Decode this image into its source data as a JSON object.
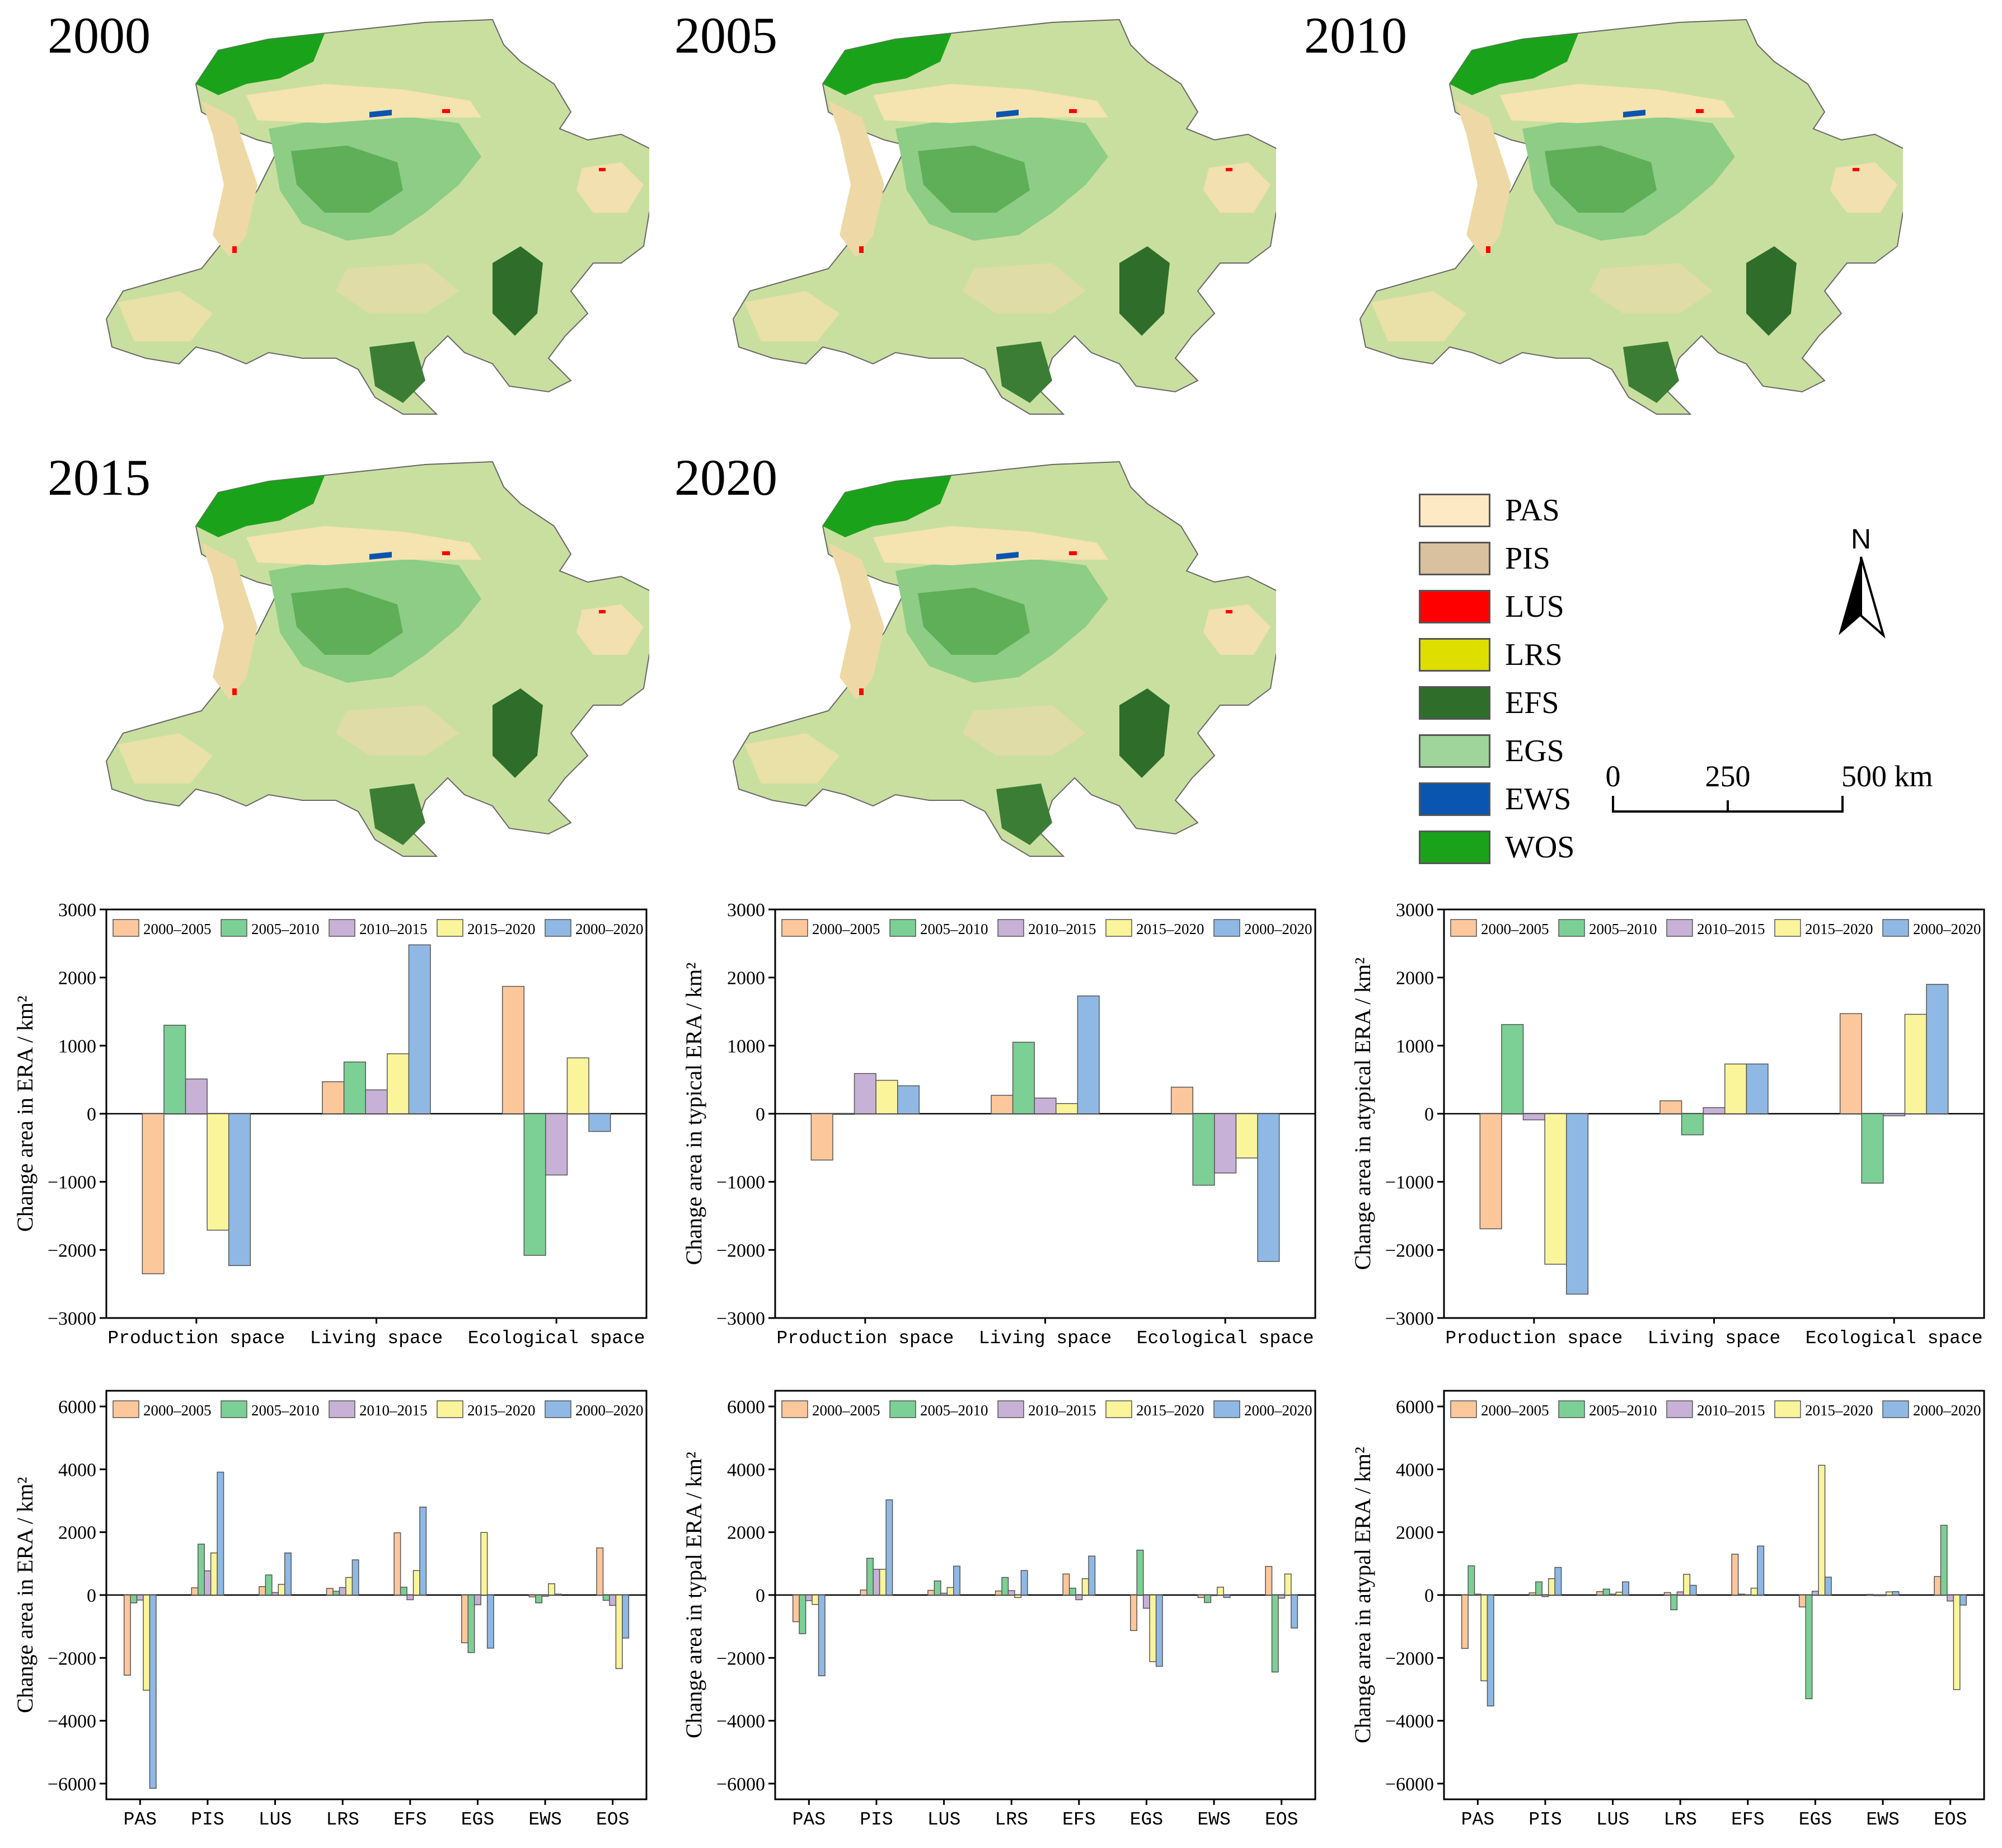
{
  "maps": {
    "years": [
      "2000",
      "2005",
      "2010",
      "2015",
      "2020"
    ]
  },
  "legend": {
    "items": [
      {
        "label": "PAS",
        "color": "#fde9c4"
      },
      {
        "label": "PIS",
        "color": "#d9c09e"
      },
      {
        "label": "LUS",
        "color": "#ff0000"
      },
      {
        "label": "LRS",
        "color": "#dede00"
      },
      {
        "label": "EFS",
        "color": "#2e6e2a"
      },
      {
        "label": "EGS",
        "color": "#9fd49a"
      },
      {
        "label": "EWS",
        "color": "#0a55b0"
      },
      {
        "label": "WOS",
        "color": "#1aa31a"
      }
    ]
  },
  "north_arrow": {
    "label": "N"
  },
  "scale_bar": {
    "ticks": [
      "0",
      "250",
      "500 km"
    ]
  },
  "colors": {
    "p1": "#fdc79c",
    "p2": "#7ccf95",
    "p3": "#c7b1d6",
    "p4": "#faf49a",
    "p5": "#8fb8e4"
  },
  "chart_data": [
    {
      "type": "bar",
      "ylabel": "Change area in ERA / km²",
      "ylim": [
        -3000,
        3000
      ],
      "yticks": [
        -3000,
        -2000,
        -1000,
        0,
        1000,
        2000,
        3000
      ],
      "categories": [
        "Production space",
        "Living space",
        "Ecological space"
      ],
      "series": [
        {
          "name": "2000–2005",
          "values": [
            -2350,
            470,
            1870
          ]
        },
        {
          "name": "2005–2010",
          "values": [
            1300,
            760,
            -2080
          ]
        },
        {
          "name": "2010–2015",
          "values": [
            510,
            350,
            -900
          ]
        },
        {
          "name": "2015–2020",
          "values": [
            -1710,
            880,
            820
          ]
        },
        {
          "name": "2000–2020",
          "values": [
            -2230,
            2480,
            -260
          ]
        }
      ]
    },
    {
      "type": "bar",
      "ylabel": "Change area in typical ERA / km²",
      "ylim": [
        -3000,
        3000
      ],
      "yticks": [
        -3000,
        -2000,
        -1000,
        0,
        1000,
        2000,
        3000
      ],
      "categories": [
        "Production space",
        "Living space",
        "Ecological space"
      ],
      "series": [
        {
          "name": "2000–2005",
          "values": [
            -680,
            270,
            390
          ]
        },
        {
          "name": "2005–2010",
          "values": [
            -10,
            1050,
            -1050
          ]
        },
        {
          "name": "2010–2015",
          "values": [
            590,
            230,
            -870
          ]
        },
        {
          "name": "2015–2020",
          "values": [
            490,
            150,
            -650
          ]
        },
        {
          "name": "2000–2020",
          "values": [
            410,
            1730,
            -2170
          ]
        }
      ]
    },
    {
      "type": "bar",
      "ylabel": "Change area in atypical ERA / km²",
      "ylim": [
        -3000,
        3000
      ],
      "yticks": [
        -3000,
        -2000,
        -1000,
        0,
        1000,
        2000,
        3000
      ],
      "categories": [
        "Production space",
        "Living space",
        "Ecological space"
      ],
      "series": [
        {
          "name": "2000–2005",
          "values": [
            -1690,
            190,
            1470
          ]
        },
        {
          "name": "2005–2010",
          "values": [
            1310,
            -310,
            -1020
          ]
        },
        {
          "name": "2010–2015",
          "values": [
            -90,
            90,
            -30
          ]
        },
        {
          "name": "2015–2020",
          "values": [
            -2210,
            730,
            1460
          ]
        },
        {
          "name": "2000–2020",
          "values": [
            -2650,
            730,
            1900
          ]
        }
      ]
    },
    {
      "type": "bar",
      "ylabel": "Change area in ERA / km²",
      "ylim": [
        -6500,
        6500
      ],
      "yticks": [
        -6000,
        -4000,
        -2000,
        0,
        2000,
        4000,
        6000
      ],
      "categories": [
        "PAS",
        "PIS",
        "LUS",
        "LRS",
        "EFS",
        "EGS",
        "EWS",
        "EOS"
      ],
      "series": [
        {
          "name": "2000–2005",
          "values": [
            -2550,
            230,
            270,
            210,
            1980,
            -1520,
            -60,
            1500
          ]
        },
        {
          "name": "2005–2010",
          "values": [
            -250,
            1620,
            640,
            120,
            250,
            -1830,
            -250,
            -170
          ]
        },
        {
          "name": "2010–2015",
          "values": [
            -160,
            770,
            80,
            240,
            -150,
            -310,
            -40,
            -330
          ]
        },
        {
          "name": "2015–2020",
          "values": [
            -3030,
            1340,
            340,
            560,
            780,
            1990,
            360,
            -2340
          ]
        },
        {
          "name": "2000–2020",
          "values": [
            -6150,
            3910,
            1340,
            1120,
            2800,
            -1690,
            30,
            -1370
          ]
        }
      ]
    },
    {
      "type": "bar",
      "ylabel": "Change area in typal ERA / km²",
      "ylim": [
        -6500,
        6500
      ],
      "yticks": [
        -6000,
        -4000,
        -2000,
        0,
        2000,
        4000,
        6000
      ],
      "categories": [
        "PAS",
        "PIS",
        "LUS",
        "LRS",
        "EFS",
        "EGS",
        "EWS",
        "EOS"
      ],
      "series": [
        {
          "name": "2000–2005",
          "values": [
            -850,
            160,
            150,
            130,
            670,
            -1130,
            -80,
            910
          ]
        },
        {
          "name": "2005–2010",
          "values": [
            -1230,
            1170,
            450,
            560,
            220,
            1430,
            -240,
            -2450
          ]
        },
        {
          "name": "2010–2015",
          "values": [
            -180,
            820,
            60,
            140,
            -150,
            -420,
            -20,
            -100
          ]
        },
        {
          "name": "2015–2020",
          "values": [
            -300,
            820,
            240,
            -80,
            520,
            -2120,
            250,
            670
          ]
        },
        {
          "name": "2000–2020",
          "values": [
            -2570,
            3030,
            920,
            780,
            1240,
            -2270,
            -80,
            -1050
          ]
        }
      ]
    },
    {
      "type": "bar",
      "ylabel": "Change area in atypal ERA / km²",
      "ylim": [
        -6500,
        6500
      ],
      "yticks": [
        -6000,
        -4000,
        -2000,
        0,
        2000,
        4000,
        6000
      ],
      "categories": [
        "PAS",
        "PIS",
        "LUS",
        "LRS",
        "EFS",
        "EGS",
        "EWS",
        "EOS"
      ],
      "series": [
        {
          "name": "2000–2005",
          "values": [
            -1700,
            70,
            110,
            80,
            1300,
            -380,
            20,
            590
          ]
        },
        {
          "name": "2005–2010",
          "values": [
            930,
            420,
            190,
            -470,
            30,
            -3300,
            -20,
            2220
          ]
        },
        {
          "name": "2010–2015",
          "values": [
            30,
            -50,
            30,
            100,
            10,
            120,
            -20,
            -190
          ]
        },
        {
          "name": "2015–2020",
          "values": [
            -2730,
            520,
            90,
            660,
            220,
            4130,
            100,
            -3010
          ]
        },
        {
          "name": "2000–2020",
          "values": [
            -3530,
            880,
            420,
            310,
            1560,
            570,
            110,
            -320
          ]
        }
      ]
    }
  ]
}
